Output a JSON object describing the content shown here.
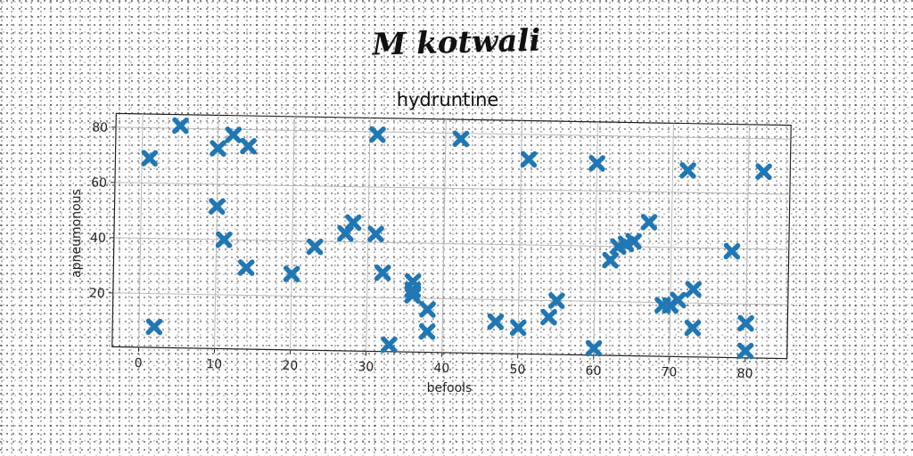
{
  "page_title": "M kotwali",
  "chart_data": {
    "type": "scatter",
    "title": "hydruntine",
    "xlabel": "befools",
    "ylabel": "apneumonous",
    "xlim": [
      -3.5,
      85.5
    ],
    "ylim": [
      0.5,
      85
    ],
    "xticks": [
      0,
      10,
      20,
      30,
      40,
      50,
      60,
      70,
      80
    ],
    "yticks": [
      20,
      40,
      60,
      80
    ],
    "grid": true,
    "marker": "X",
    "color": "#1f77b4",
    "series": [
      {
        "points": [
          [
            1,
            69
          ],
          [
            2,
            8
          ],
          [
            5,
            81
          ],
          [
            10,
            73
          ],
          [
            10,
            52
          ],
          [
            11,
            40
          ],
          [
            12,
            78
          ],
          [
            14,
            74
          ],
          [
            14,
            30
          ],
          [
            20,
            28
          ],
          [
            23,
            38
          ],
          [
            27,
            43
          ],
          [
            28,
            47
          ],
          [
            31,
            79
          ],
          [
            31,
            43
          ],
          [
            32,
            29
          ],
          [
            33,
            3
          ],
          [
            36,
            26
          ],
          [
            36,
            23
          ],
          [
            36,
            21
          ],
          [
            38,
            8
          ],
          [
            38,
            16
          ],
          [
            42,
            78
          ],
          [
            47,
            12
          ],
          [
            50,
            10
          ],
          [
            51,
            71
          ],
          [
            54,
            14
          ],
          [
            55,
            20
          ],
          [
            60,
            3
          ],
          [
            60,
            70
          ],
          [
            62,
            35
          ],
          [
            63,
            40
          ],
          [
            64,
            41
          ],
          [
            65,
            42
          ],
          [
            67,
            49
          ],
          [
            69,
            19
          ],
          [
            70,
            19
          ],
          [
            71,
            21
          ],
          [
            72,
            68
          ],
          [
            73,
            25
          ],
          [
            73,
            11
          ],
          [
            78,
            39
          ],
          [
            80,
            13
          ],
          [
            80,
            3
          ],
          [
            82,
            68
          ]
        ]
      }
    ]
  }
}
